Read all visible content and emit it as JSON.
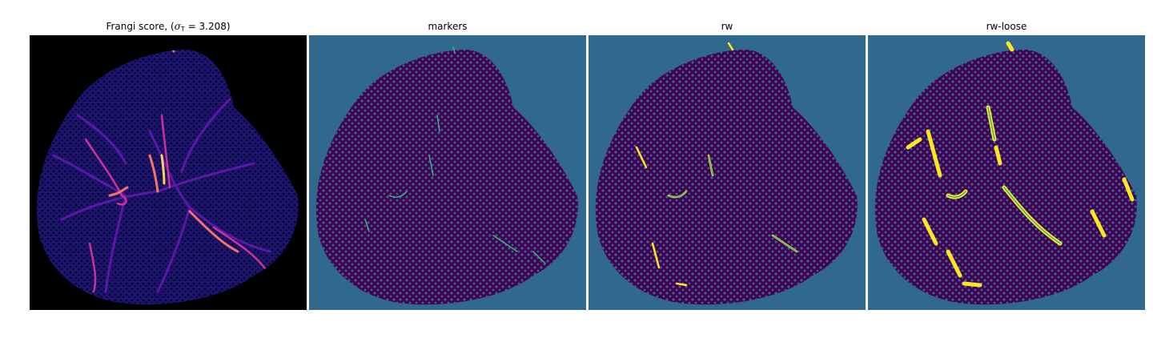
{
  "panels": [
    {
      "id": "frangi",
      "title_prefix": "Frangi score, (",
      "title_symbol": "σ",
      "title_sub": "T",
      "title_suffix": " = 3.208)"
    },
    {
      "id": "markers",
      "title": "markers"
    },
    {
      "id": "rw",
      "title": "rw"
    },
    {
      "id": "rw-loose",
      "title": "rw-loose"
    }
  ],
  "colors": {
    "black_bg": "#000000",
    "teal_bg": "#31688e",
    "purple": "#440154",
    "green": "#35b779",
    "yellow": "#fde725",
    "frangi_low": "#2a1b8f",
    "frangi_mid": "#8b1fa6",
    "frangi_high": "#f0607a",
    "frangi_peak": "#fcce5a"
  }
}
